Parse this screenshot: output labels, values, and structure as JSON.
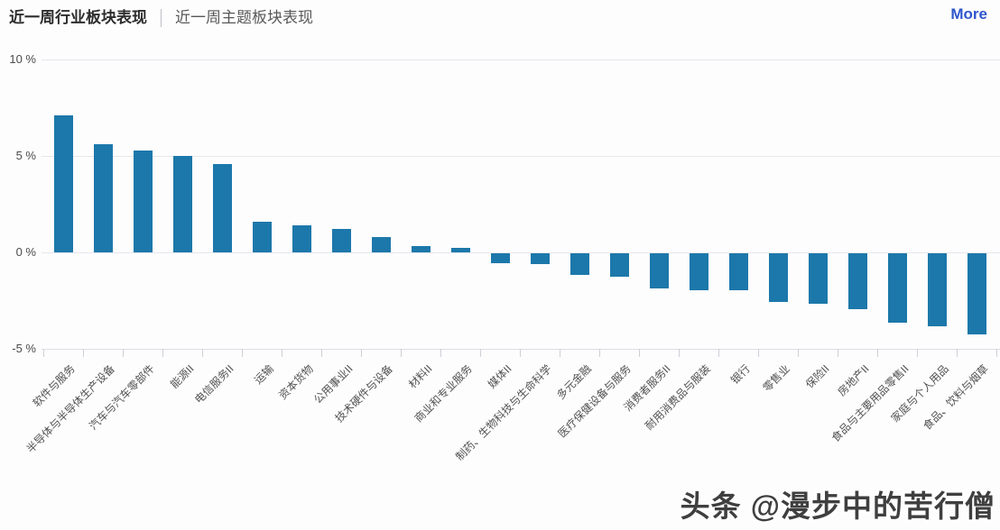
{
  "header": {
    "tabs": [
      {
        "label": "近一周行业板块表现",
        "active": true
      },
      {
        "label": "近一周主题板块表现",
        "active": false
      }
    ],
    "more_label": "More"
  },
  "chart_data": {
    "type": "bar",
    "title": "近一周行业板块表现",
    "unit": "%",
    "categories": [
      "软件与服务",
      "半导体与半导体生产设备",
      "汽车与汽车零部件",
      "能源II",
      "电信服务II",
      "运输",
      "资本货物",
      "公用事业II",
      "技术硬件与设备",
      "材料II",
      "商业和专业服务",
      "媒体II",
      "制药、生物科技与生命科学",
      "多元金融",
      "医疗保健设备与服务",
      "消费者服务II",
      "耐用消费品与服装",
      "银行",
      "零售业",
      "保险II",
      "房地产II",
      "食品与主要用品零售II",
      "家庭与个人用品",
      "食品、饮料与烟草"
    ],
    "values": [
      7.1,
      5.6,
      5.3,
      5.0,
      4.6,
      1.6,
      1.4,
      1.2,
      0.8,
      0.35,
      0.25,
      -0.5,
      -0.55,
      -1.1,
      -1.2,
      -1.8,
      -1.9,
      -1.9,
      -2.5,
      -2.6,
      -2.9,
      -3.6,
      -3.8,
      -4.2
    ],
    "y_tick_labels": [
      "10 %",
      "5 %",
      "0 %",
      "-5 %"
    ],
    "y_tick_values": [
      10,
      5,
      0,
      -5
    ],
    "ylim": [
      -5,
      10
    ],
    "bar_color": "#1c78aa",
    "grid": true,
    "legend": "none",
    "x_label_rotation": -45
  },
  "watermark": {
    "text": "头条 @漫步中的苦行僧"
  }
}
